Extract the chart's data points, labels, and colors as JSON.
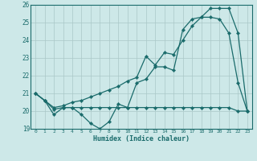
{
  "xlabel": "Humidex (Indice chaleur)",
  "x": [
    0,
    1,
    2,
    3,
    4,
    5,
    6,
    7,
    8,
    9,
    10,
    11,
    12,
    13,
    14,
    15,
    16,
    17,
    18,
    19,
    20,
    21,
    22,
    23
  ],
  "line_wavy": [
    21.0,
    20.6,
    19.8,
    20.2,
    20.2,
    19.8,
    19.3,
    19.0,
    19.4,
    20.4,
    20.2,
    21.6,
    21.8,
    22.5,
    22.5,
    22.3,
    24.6,
    25.2,
    25.3,
    25.3,
    25.2,
    24.4,
    21.6,
    20.0
  ],
  "line_diagonal": [
    21.0,
    20.6,
    20.2,
    20.3,
    20.5,
    20.6,
    20.8,
    21.0,
    21.2,
    21.4,
    21.7,
    21.9,
    23.1,
    22.6,
    23.3,
    23.2,
    24.0,
    24.8,
    25.3,
    25.8,
    25.8,
    25.8,
    24.4,
    20.0
  ],
  "line_flat": [
    21.0,
    20.6,
    20.1,
    20.2,
    20.2,
    20.2,
    20.2,
    20.2,
    20.2,
    20.2,
    20.2,
    20.2,
    20.2,
    20.2,
    20.2,
    20.2,
    20.2,
    20.2,
    20.2,
    20.2,
    20.2,
    20.2,
    20.0,
    20.0
  ],
  "bg_color": "#cde8e8",
  "grid_color": "#aac8c8",
  "line_color": "#1a6b6b",
  "ylim": [
    19,
    26
  ],
  "xlim": [
    -0.5,
    23.5
  ],
  "yticks": [
    19,
    20,
    21,
    22,
    23,
    24,
    25,
    26
  ],
  "xticks": [
    0,
    1,
    2,
    3,
    4,
    5,
    6,
    7,
    8,
    9,
    10,
    11,
    12,
    13,
    14,
    15,
    16,
    17,
    18,
    19,
    20,
    21,
    22,
    23
  ]
}
